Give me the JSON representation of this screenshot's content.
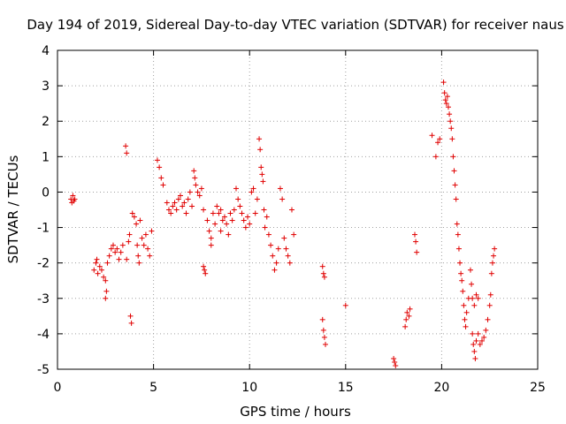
{
  "chart_data": {
    "type": "scatter",
    "title": "Day 194 of 2019, Sidereal Day-to-day VTEC variation (SDTVAR) for receiver naus",
    "xlabel": "GPS time / hours",
    "ylabel": "SDTVAR / TECUs",
    "xlim": [
      0,
      25
    ],
    "ylim": [
      -5,
      4
    ],
    "xticks": [
      "0",
      "5",
      "10",
      "15",
      "20",
      "25"
    ],
    "yticks": [
      "-5",
      "-4",
      "-3",
      "-2",
      "-1",
      "0",
      "1",
      "2",
      "3",
      "4"
    ],
    "grid": true,
    "marker": "+",
    "color": "#e00000",
    "series": [
      {
        "name": "naus",
        "points": [
          [
            0.7,
            -0.2
          ],
          [
            0.75,
            -0.3
          ],
          [
            0.8,
            -0.1
          ],
          [
            0.85,
            -0.25
          ],
          [
            0.9,
            -0.2
          ],
          [
            1.9,
            -2.2
          ],
          [
            2.0,
            -2.0
          ],
          [
            2.05,
            -1.9
          ],
          [
            2.1,
            -2.3
          ],
          [
            2.2,
            -2.1
          ],
          [
            2.3,
            -2.2
          ],
          [
            2.4,
            -2.4
          ],
          [
            2.5,
            -2.5
          ],
          [
            2.5,
            -3.0
          ],
          [
            2.55,
            -2.8
          ],
          [
            2.6,
            -2.0
          ],
          [
            2.7,
            -1.8
          ],
          [
            2.8,
            -1.6
          ],
          [
            2.9,
            -1.5
          ],
          [
            3.0,
            -1.7
          ],
          [
            3.1,
            -1.6
          ],
          [
            3.2,
            -1.9
          ],
          [
            3.3,
            -1.7
          ],
          [
            3.4,
            -1.5
          ],
          [
            3.55,
            1.3
          ],
          [
            3.6,
            1.1
          ],
          [
            3.6,
            -1.9
          ],
          [
            3.7,
            -1.4
          ],
          [
            3.75,
            -1.2
          ],
          [
            3.8,
            -3.5
          ],
          [
            3.85,
            -3.7
          ],
          [
            3.9,
            -0.6
          ],
          [
            4.0,
            -0.7
          ],
          [
            4.1,
            -0.9
          ],
          [
            4.15,
            -1.5
          ],
          [
            4.2,
            -1.8
          ],
          [
            4.25,
            -2.0
          ],
          [
            4.3,
            -0.8
          ],
          [
            4.4,
            -1.3
          ],
          [
            4.5,
            -1.5
          ],
          [
            4.6,
            -1.2
          ],
          [
            4.7,
            -1.6
          ],
          [
            4.8,
            -1.8
          ],
          [
            4.9,
            -1.1
          ],
          [
            5.2,
            0.9
          ],
          [
            5.3,
            0.7
          ],
          [
            5.4,
            0.4
          ],
          [
            5.5,
            0.2
          ],
          [
            5.7,
            -0.3
          ],
          [
            5.8,
            -0.5
          ],
          [
            5.9,
            -0.6
          ],
          [
            6.0,
            -0.4
          ],
          [
            6.1,
            -0.3
          ],
          [
            6.2,
            -0.5
          ],
          [
            6.3,
            -0.2
          ],
          [
            6.4,
            -0.1
          ],
          [
            6.5,
            -0.4
          ],
          [
            6.6,
            -0.3
          ],
          [
            6.7,
            -0.6
          ],
          [
            6.8,
            -0.2
          ],
          [
            6.9,
            0.0
          ],
          [
            7.0,
            -0.4
          ],
          [
            7.1,
            0.6
          ],
          [
            7.15,
            0.4
          ],
          [
            7.2,
            0.2
          ],
          [
            7.3,
            0.0
          ],
          [
            7.4,
            -0.1
          ],
          [
            7.5,
            0.1
          ],
          [
            7.6,
            -0.5
          ],
          [
            7.6,
            -2.1
          ],
          [
            7.65,
            -2.2
          ],
          [
            7.7,
            -2.3
          ],
          [
            7.8,
            -0.8
          ],
          [
            7.9,
            -1.1
          ],
          [
            8.0,
            -1.3
          ],
          [
            8.0,
            -1.5
          ],
          [
            8.1,
            -0.6
          ],
          [
            8.2,
            -0.9
          ],
          [
            8.3,
            -0.4
          ],
          [
            8.4,
            -0.6
          ],
          [
            8.5,
            -0.5
          ],
          [
            8.5,
            -1.1
          ],
          [
            8.6,
            -0.8
          ],
          [
            8.7,
            -0.7
          ],
          [
            8.8,
            -0.9
          ],
          [
            8.9,
            -1.2
          ],
          [
            9.0,
            -0.6
          ],
          [
            9.1,
            -0.8
          ],
          [
            9.2,
            -0.5
          ],
          [
            9.3,
            0.1
          ],
          [
            9.4,
            -0.2
          ],
          [
            9.5,
            -0.4
          ],
          [
            9.6,
            -0.6
          ],
          [
            9.7,
            -0.8
          ],
          [
            9.8,
            -1.0
          ],
          [
            9.9,
            -0.7
          ],
          [
            10.0,
            -0.9
          ],
          [
            10.1,
            0.0
          ],
          [
            10.2,
            0.1
          ],
          [
            10.3,
            -0.6
          ],
          [
            10.4,
            -0.2
          ],
          [
            10.5,
            1.5
          ],
          [
            10.55,
            1.2
          ],
          [
            10.6,
            0.7
          ],
          [
            10.65,
            0.5
          ],
          [
            10.7,
            0.3
          ],
          [
            10.75,
            -0.5
          ],
          [
            10.8,
            -1.0
          ],
          [
            10.9,
            -0.7
          ],
          [
            11.0,
            -1.2
          ],
          [
            11.1,
            -1.5
          ],
          [
            11.2,
            -1.8
          ],
          [
            11.3,
            -2.2
          ],
          [
            11.4,
            -2.0
          ],
          [
            11.5,
            -1.6
          ],
          [
            11.6,
            0.1
          ],
          [
            11.7,
            -0.2
          ],
          [
            11.8,
            -1.3
          ],
          [
            11.9,
            -1.6
          ],
          [
            12.0,
            -1.8
          ],
          [
            12.1,
            -2.0
          ],
          [
            12.2,
            -0.5
          ],
          [
            12.3,
            -1.2
          ],
          [
            13.8,
            -2.1
          ],
          [
            13.85,
            -2.3
          ],
          [
            13.9,
            -2.4
          ],
          [
            13.8,
            -3.6
          ],
          [
            13.85,
            -3.9
          ],
          [
            13.9,
            -4.1
          ],
          [
            13.95,
            -4.3
          ],
          [
            15.0,
            -3.2
          ],
          [
            17.5,
            -4.7
          ],
          [
            17.55,
            -4.8
          ],
          [
            17.6,
            -4.9
          ],
          [
            18.1,
            -3.8
          ],
          [
            18.15,
            -3.6
          ],
          [
            18.2,
            -3.4
          ],
          [
            18.3,
            -3.5
          ],
          [
            18.35,
            -3.3
          ],
          [
            18.6,
            -1.2
          ],
          [
            18.65,
            -1.4
          ],
          [
            18.7,
            -1.7
          ],
          [
            19.5,
            1.6
          ],
          [
            19.7,
            1.0
          ],
          [
            19.8,
            1.4
          ],
          [
            19.9,
            1.5
          ],
          [
            20.1,
            3.1
          ],
          [
            20.15,
            2.8
          ],
          [
            20.2,
            2.6
          ],
          [
            20.25,
            2.5
          ],
          [
            20.3,
            2.7
          ],
          [
            20.35,
            2.4
          ],
          [
            20.4,
            2.2
          ],
          [
            20.45,
            2.0
          ],
          [
            20.5,
            1.8
          ],
          [
            20.55,
            1.5
          ],
          [
            20.6,
            1.0
          ],
          [
            20.65,
            0.6
          ],
          [
            20.7,
            0.2
          ],
          [
            20.75,
            -0.2
          ],
          [
            20.8,
            -0.9
          ],
          [
            20.85,
            -1.2
          ],
          [
            20.9,
            -1.6
          ],
          [
            20.95,
            -2.0
          ],
          [
            21.0,
            -2.3
          ],
          [
            21.05,
            -2.5
          ],
          [
            21.1,
            -2.8
          ],
          [
            21.15,
            -3.2
          ],
          [
            21.2,
            -3.6
          ],
          [
            21.25,
            -3.8
          ],
          [
            21.3,
            -3.4
          ],
          [
            21.4,
            -3.0
          ],
          [
            21.5,
            -2.2
          ],
          [
            21.55,
            -2.6
          ],
          [
            21.6,
            -3.0
          ],
          [
            21.7,
            -3.2
          ],
          [
            21.8,
            -2.9
          ],
          [
            21.9,
            -3.0
          ],
          [
            21.6,
            -4.0
          ],
          [
            21.65,
            -4.3
          ],
          [
            21.7,
            -4.5
          ],
          [
            21.75,
            -4.7
          ],
          [
            21.8,
            -4.2
          ],
          [
            21.9,
            -4.0
          ],
          [
            22.0,
            -4.3
          ],
          [
            22.1,
            -4.2
          ],
          [
            22.2,
            -4.1
          ],
          [
            22.3,
            -3.9
          ],
          [
            22.4,
            -3.6
          ],
          [
            22.5,
            -3.2
          ],
          [
            22.55,
            -2.9
          ],
          [
            22.6,
            -2.3
          ],
          [
            22.65,
            -2.0
          ],
          [
            22.7,
            -1.8
          ],
          [
            22.75,
            -1.6
          ]
        ]
      }
    ]
  }
}
